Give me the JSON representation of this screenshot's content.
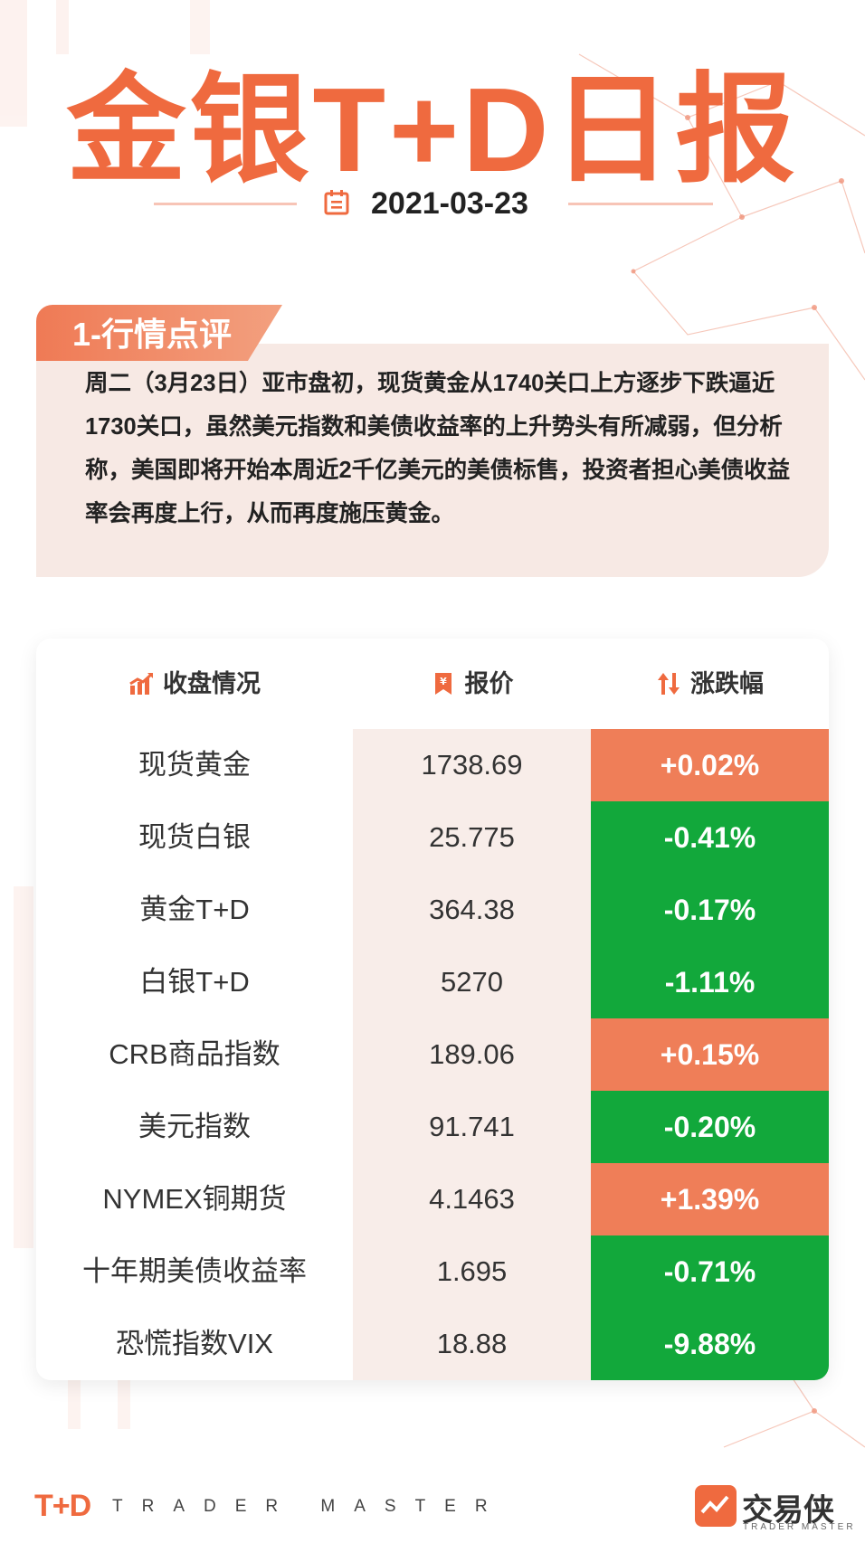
{
  "header": {
    "title": "金银T+D日报",
    "date": "2021-03-23"
  },
  "comment": {
    "section_label": "1-行情点评",
    "text": "周二（3月23日）亚市盘初，现货黄金从1740关口上方逐步下跌逼近1730关口，虽然美元指数和美债收益率的上升势头有所减弱，但分析称，美国即将开始本周近2千亿美元的美债标售，投资者担心美债收益率会再度上行，从而再度施压黄金。"
  },
  "table": {
    "headers": {
      "name": "收盘情况",
      "price": "报价",
      "change": "涨跌幅"
    },
    "rows": [
      {
        "name": "现货黄金",
        "price": "1738.69",
        "change": "+0.02%",
        "direction": "up"
      },
      {
        "name": "现货白银",
        "price": "25.775",
        "change": "-0.41%",
        "direction": "down"
      },
      {
        "name": "黄金T+D",
        "price": "364.38",
        "change": "-0.17%",
        "direction": "down"
      },
      {
        "name": "白银T+D",
        "price": "5270",
        "change": "-1.11%",
        "direction": "down"
      },
      {
        "name": "CRB商品指数",
        "price": "189.06",
        "change": "+0.15%",
        "direction": "up"
      },
      {
        "name": "美元指数",
        "price": "91.741",
        "change": "-0.20%",
        "direction": "down"
      },
      {
        "name": "NYMEX铜期货",
        "price": "4.1463",
        "change": "+1.39%",
        "direction": "up"
      },
      {
        "name": "十年期美债收益率",
        "price": "1.695",
        "change": "-0.71%",
        "direction": "down"
      },
      {
        "name": "恐慌指数VIX",
        "price": "18.88",
        "change": "-9.88%",
        "direction": "down"
      }
    ]
  },
  "colors": {
    "accent": "#ef6a3f",
    "up": "#ef7e58",
    "down": "#12a83b",
    "price_column_bg": "#f8ede9",
    "comment_bg": "#f7e9e4"
  },
  "icons": {
    "date": "calendar-icon",
    "name_header": "trend-chart-icon",
    "price_header": "price-tag-icon",
    "change_header": "up-down-arrows-icon"
  },
  "footer": {
    "left_logo": "T+D",
    "left_tagline": "TRADER MASTER",
    "brand_name": "交易侠",
    "brand_sub": "TRADER MASTER"
  }
}
